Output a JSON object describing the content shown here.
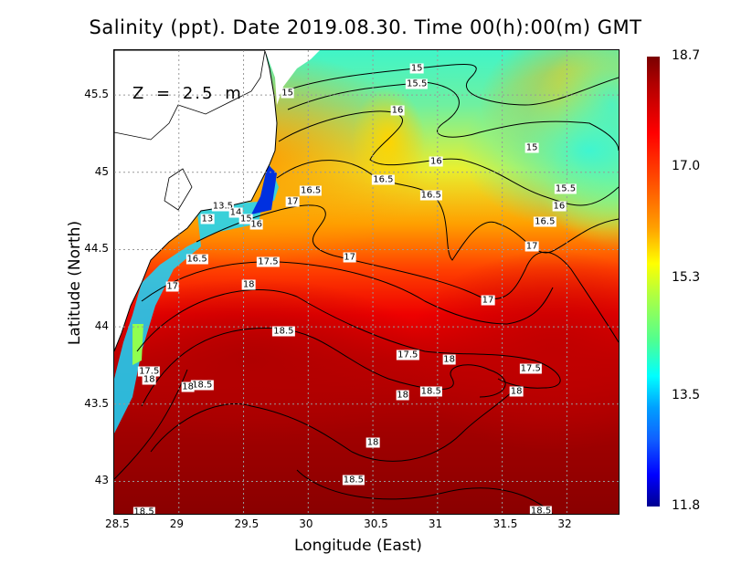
{
  "title": "Salinity (ppt). Date 2019.08.30. Time 00(h):00(m) GMT",
  "depth_label": "Z = 2.5 m",
  "chart_data": {
    "type": "heatmap",
    "subtype": "contour-filled map",
    "variable": "Salinity (ppt)",
    "xlabel": "Longitude (East)",
    "ylabel": "Latitude (North)",
    "xlim": [
      28.5,
      32.4
    ],
    "ylim": [
      42.79,
      45.79
    ],
    "xticks": [
      28.5,
      29,
      29.5,
      30,
      30.5,
      31,
      31.5,
      32
    ],
    "xtick_labels": [
      "28.5",
      "29",
      "29.5",
      "30",
      "30.5",
      "31",
      "31.5",
      "32"
    ],
    "yticks": [
      43,
      43.5,
      44,
      44.5,
      45,
      45.5
    ],
    "ytick_labels": [
      "43",
      "43.5",
      "44",
      "44.5",
      "45",
      "45.5"
    ],
    "grid": true,
    "colorbar": {
      "min": 11.8,
      "max": 18.7,
      "tick_labels": [
        "18.7",
        "17.0",
        "15.3",
        "13.5",
        "11.8"
      ],
      "tick_values": [
        18.7,
        17.0,
        15.3,
        13.5,
        11.8
      ],
      "colormap": "jet"
    },
    "contour_labels": [
      {
        "text": "15",
        "lon": 30.84,
        "lat": 45.67
      },
      {
        "text": "15",
        "lon": 29.84,
        "lat": 45.51
      },
      {
        "text": "15.5",
        "lon": 30.84,
        "lat": 45.57
      },
      {
        "text": "16",
        "lon": 30.69,
        "lat": 45.4
      },
      {
        "text": "15",
        "lon": 31.73,
        "lat": 45.16
      },
      {
        "text": "16",
        "lon": 30.99,
        "lat": 45.07
      },
      {
        "text": "16.5",
        "lon": 30.58,
        "lat": 44.95
      },
      {
        "text": "16.5",
        "lon": 30.02,
        "lat": 44.88
      },
      {
        "text": "17",
        "lon": 29.88,
        "lat": 44.81
      },
      {
        "text": "16.5",
        "lon": 30.95,
        "lat": 44.85
      },
      {
        "text": "15.5",
        "lon": 31.99,
        "lat": 44.89
      },
      {
        "text": "16",
        "lon": 31.94,
        "lat": 44.78
      },
      {
        "text": "16.5",
        "lon": 31.83,
        "lat": 44.68
      },
      {
        "text": "17",
        "lon": 31.73,
        "lat": 44.52
      },
      {
        "text": "17",
        "lon": 30.32,
        "lat": 44.45
      },
      {
        "text": "17.5",
        "lon": 29.69,
        "lat": 44.42
      },
      {
        "text": "16.5",
        "lon": 29.14,
        "lat": 44.44
      },
      {
        "text": "17",
        "lon": 28.95,
        "lat": 44.26
      },
      {
        "text": "18",
        "lon": 29.54,
        "lat": 44.27
      },
      {
        "text": "17",
        "lon": 31.39,
        "lat": 44.17
      },
      {
        "text": "18.5",
        "lon": 29.81,
        "lat": 43.97
      },
      {
        "text": "17.5",
        "lon": 30.77,
        "lat": 43.82
      },
      {
        "text": "18",
        "lon": 31.09,
        "lat": 43.79
      },
      {
        "text": "17.5",
        "lon": 31.72,
        "lat": 43.73
      },
      {
        "text": "17.5",
        "lon": 28.77,
        "lat": 43.71
      },
      {
        "text": "18",
        "lon": 28.77,
        "lat": 43.66
      },
      {
        "text": "18.5",
        "lon": 29.18,
        "lat": 43.62
      },
      {
        "text": "18",
        "lon": 29.07,
        "lat": 43.61
      },
      {
        "text": "18.5",
        "lon": 30.95,
        "lat": 43.58
      },
      {
        "text": "18",
        "lon": 30.73,
        "lat": 43.56
      },
      {
        "text": "18",
        "lon": 31.61,
        "lat": 43.58
      },
      {
        "text": "18",
        "lon": 30.5,
        "lat": 43.25
      },
      {
        "text": "18.5",
        "lon": 30.35,
        "lat": 43.01
      },
      {
        "text": "18.5",
        "lon": 31.8,
        "lat": 42.81
      },
      {
        "text": "18.5",
        "lon": 28.73,
        "lat": 42.8
      },
      {
        "text": "13.5",
        "lon": 29.34,
        "lat": 44.78
      },
      {
        "text": "13",
        "lon": 29.22,
        "lat": 44.7
      },
      {
        "text": "14",
        "lon": 29.44,
        "lat": 44.74
      },
      {
        "text": "15",
        "lon": 29.52,
        "lat": 44.7
      },
      {
        "text": "16",
        "lon": 29.6,
        "lat": 44.66
      }
    ]
  }
}
